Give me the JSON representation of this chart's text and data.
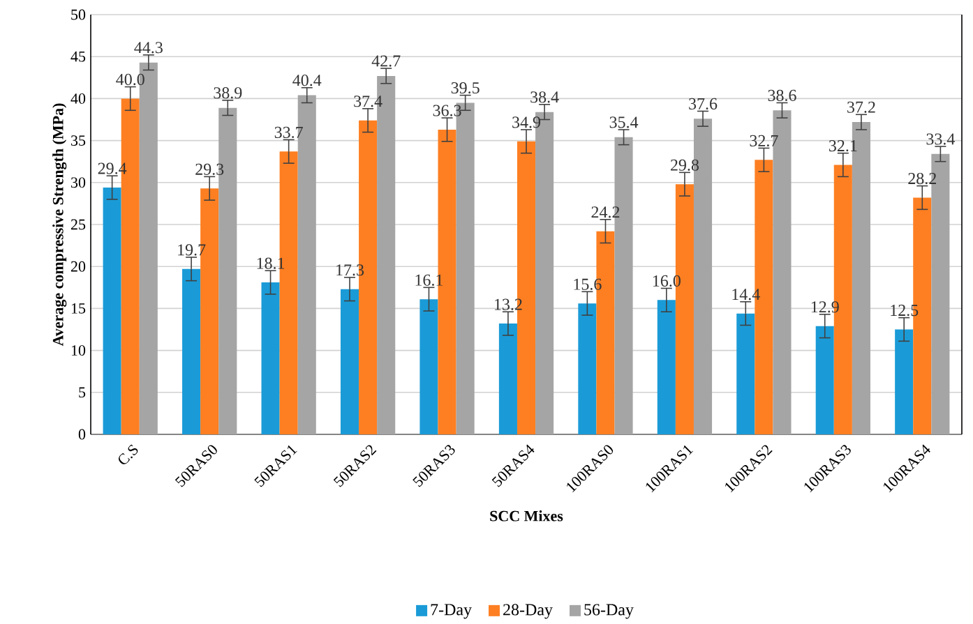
{
  "chart_data": {
    "type": "bar",
    "xlabel": "SCC Mixes",
    "ylabel": "Average compressive Strength (MPa)",
    "categories": [
      "C.S",
      "50RAS0",
      "50RAS1",
      "50RAS2",
      "50RAS3",
      "50RAS4",
      "100RAS0",
      "100RAS1",
      "100RAS2",
      "100RAS3",
      "100RAS4"
    ],
    "series": [
      {
        "name": "7-Day",
        "color": "#1a9bd7",
        "values": [
          29.4,
          19.7,
          18.1,
          17.3,
          16.1,
          13.2,
          15.6,
          16.0,
          14.4,
          12.9,
          12.5
        ],
        "errors": [
          1.4,
          1.4,
          1.4,
          1.4,
          1.4,
          1.4,
          1.4,
          1.4,
          1.4,
          1.4,
          1.4
        ],
        "value_labels": [
          "29.4",
          "19.7",
          "18.1",
          "17.3",
          "16.1",
          "13.2",
          "15.6",
          "16.0",
          "14.4",
          "12.9",
          "12.5"
        ]
      },
      {
        "name": "28-Day",
        "color": "#fd7f22",
        "values": [
          40.0,
          29.3,
          33.7,
          37.4,
          36.3,
          34.9,
          24.2,
          29.8,
          32.7,
          32.1,
          28.2
        ],
        "errors": [
          1.4,
          1.4,
          1.4,
          1.4,
          1.4,
          1.4,
          1.4,
          1.4,
          1.4,
          1.4,
          1.4
        ],
        "value_labels": [
          "40.0",
          "29.3",
          "33.7",
          "37.4",
          "36.3",
          "34.9",
          "24.2",
          "29.8",
          "32.7",
          "32.1",
          "28.2"
        ]
      },
      {
        "name": "56-Day",
        "color": "#a5a5a5",
        "values": [
          44.3,
          38.9,
          40.4,
          42.7,
          39.5,
          38.4,
          35.4,
          37.6,
          38.6,
          37.2,
          33.4
        ],
        "errors": [
          0.9,
          0.9,
          0.9,
          0.9,
          0.9,
          0.9,
          0.9,
          0.9,
          0.9,
          0.9,
          0.9
        ],
        "value_labels": [
          "44.3",
          "38.9",
          "40.4",
          "42.7",
          "39.5",
          "38.4",
          "35.4",
          "37.6",
          "38.6",
          "37.2",
          "33.4"
        ]
      }
    ],
    "ylim": [
      0,
      50
    ],
    "yticks": [
      0,
      5,
      10,
      15,
      20,
      25,
      30,
      35,
      40,
      45,
      50
    ],
    "grid": "y",
    "legend": "bottom"
  }
}
